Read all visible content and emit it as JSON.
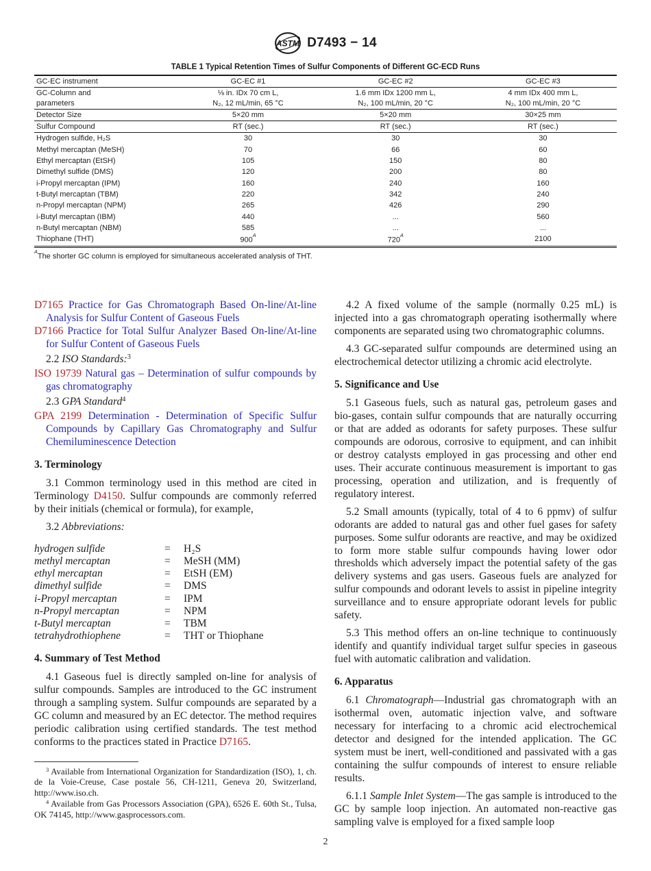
{
  "colors": {
    "link_red": "#b0262c",
    "link_blue": "#2828b4",
    "ink": "#1d1d1f"
  },
  "header": {
    "logo_text": "ASTM",
    "designation": "D7493 − 14"
  },
  "footer": {
    "page_number": "2"
  },
  "table1": {
    "title": "TABLE 1 Typical Retention Times of Sulfur Components of Different GC-ECD Runs",
    "rows": [
      {
        "rule": true,
        "cells": [
          "GC-EC instrument",
          "GC-EC #1",
          "GC-EC #2",
          "GC-EC #3"
        ]
      },
      {
        "rule": true,
        "cells": [
          "GC-Column and\nparameters",
          "⅛ in. IDx 70 cm L,\nN₂, 12 mL/min, 65 °C",
          "1.6 mm IDx 1200 mm L,\nN₂, 100 mL/min, 20 °C",
          "4 mm IDx 400 mm L,\nN₂, 100 mL/min, 20 °C"
        ]
      },
      {
        "rule": true,
        "cells": [
          "Detector Size",
          "5×20 mm",
          "5×20 mm",
          "30×25 mm"
        ]
      },
      {
        "rule": true,
        "cells": [
          "Sulfur Compound",
          "RT (sec.)",
          "RT (sec.)",
          "RT (sec.)"
        ]
      },
      {
        "cells": [
          "Hydrogen sulfide, H₂S",
          "30",
          "30",
          "30"
        ]
      },
      {
        "cells": [
          "Methyl mercaptan (MeSH)",
          "70",
          "66",
          "60"
        ]
      },
      {
        "cells": [
          "Ethyl mercaptan (EtSH)",
          "105",
          "150",
          "80"
        ]
      },
      {
        "cells": [
          "Dimethyl sulfide (DMS)",
          "120",
          "200",
          "80"
        ]
      },
      {
        "cells": [
          "i-Propyl mercaptan (IPM)",
          "160",
          "240",
          "160"
        ]
      },
      {
        "cells": [
          "t-Butyl mercaptan (TBM)",
          "220",
          "342",
          "240"
        ]
      },
      {
        "cells": [
          "n-Propyl mercaptan (NPM)",
          "265",
          "426",
          "290"
        ]
      },
      {
        "cells": [
          "i-Butyl mercaptan (IBM)",
          "440",
          "...",
          "560"
        ]
      },
      {
        "cells": [
          "n-Butyl mercaptan (NBM)",
          "585",
          "...",
          "..."
        ]
      },
      {
        "cells": [
          "Thiophane (THT)",
          "900^A",
          "720^A",
          "2100"
        ]
      }
    ],
    "footnote_marker": "A",
    "footnote": "The shorter GC column is employed for simultaneous accelerated analysis of THT."
  },
  "columns": {
    "left": {
      "blocks": [
        {
          "type": "ref",
          "runs": [
            {
              "t": "D7165 ",
              "s": "red"
            },
            {
              "t": "Practice for Gas Chromatograph Based On-line/At-line Analysis for Sulfur Content of Gaseous Fuels",
              "s": "blue"
            }
          ]
        },
        {
          "type": "ref",
          "runs": [
            {
              "t": "D7166 ",
              "s": "red"
            },
            {
              "t": "Practice for Total Sulfur Analyzer Based On-line/At-line for Sulfur Content of Gaseous Fuels",
              "s": "blue"
            }
          ]
        },
        {
          "type": "refh",
          "runs": [
            {
              "t": "2.2 "
            },
            {
              "t": "ISO Standards:",
              "s": "i"
            },
            {
              "t": "3",
              "s": "sup"
            }
          ]
        },
        {
          "type": "ref",
          "runs": [
            {
              "t": "ISO 19739 ",
              "s": "red"
            },
            {
              "t": "Natural gas – Determination of sulfur compounds by gas chromatography",
              "s": "blue"
            }
          ]
        },
        {
          "type": "refh",
          "runs": [
            {
              "t": "2.3 "
            },
            {
              "t": "GPA Standard",
              "s": "i"
            },
            {
              "t": "4",
              "s": "sup"
            }
          ]
        },
        {
          "type": "ref",
          "runs": [
            {
              "t": "GPA 2199 ",
              "s": "red"
            },
            {
              "t": "Determination - Determination of Specific Sulfur Compounds by Capillary Gas Chromatography and Sulfur Chemiluminescence Detection",
              "s": "blue"
            }
          ]
        },
        {
          "type": "h",
          "runs": [
            {
              "t": "3.  Terminology"
            }
          ]
        },
        {
          "type": "p",
          "runs": [
            {
              "t": "3.1 Common terminology used in this method are cited in Terminology "
            },
            {
              "t": "D4150",
              "s": "red"
            },
            {
              "t": ". Sulfur compounds are commonly referred by their initials (chemical or formula), for example,"
            }
          ]
        },
        {
          "type": "p",
          "runs": [
            {
              "t": "3.2 "
            },
            {
              "t": "Abbreviations:",
              "s": "i"
            }
          ]
        },
        {
          "type": "abbr",
          "eq": "=",
          "items": [
            {
              "term": "hydrogen sulfide",
              "value": "H₂S"
            },
            {
              "term": "methyl mercaptan",
              "value": "MeSH (MM)"
            },
            {
              "term": "ethyl mercaptan",
              "value": "EtSH (EM)"
            },
            {
              "term": "dimethyl sulfide",
              "value": "DMS"
            },
            {
              "term": "i-Propyl mercaptan",
              "value": "IPM"
            },
            {
              "term": "n-Propyl mercaptan",
              "value": "NPM"
            },
            {
              "term": "t-Butyl mercaptan",
              "value": "TBM"
            },
            {
              "term": "tetrahydrothiophene",
              "value": "THT or Thiophane"
            }
          ]
        },
        {
          "type": "h",
          "runs": [
            {
              "t": "4.  Summary of Test Method"
            }
          ]
        },
        {
          "type": "p",
          "runs": [
            {
              "t": "4.1 Gaseous fuel is directly sampled on-line for analysis of sulfur compounds. Samples are introduced to the GC instrument through a sampling system. Sulfur compounds are separated by a GC column and measured by an EC detector. The method requires periodic calibration using certified standards. The test method conforms to the practices stated in Practice "
            },
            {
              "t": "D7165",
              "s": "red"
            },
            {
              "t": "."
            }
          ]
        },
        {
          "type": "fnrule"
        },
        {
          "type": "fn",
          "runs": [
            {
              "t": "3",
              "s": "sup"
            },
            {
              "t": " Available from International Organization for Standardization (ISO), 1, ch. de la Voie-Creuse, Case postale 56, CH-1211, Geneva 20, Switzerland, http://www.iso.ch."
            }
          ]
        },
        {
          "type": "fn",
          "runs": [
            {
              "t": "4",
              "s": "sup"
            },
            {
              "t": " Available from Gas Processors Association (GPA), 6526 E. 60th St., Tulsa, OK 74145, http://www.gasprocessors.com."
            }
          ]
        }
      ]
    },
    "right": {
      "blocks": [
        {
          "type": "p",
          "runs": [
            {
              "t": "4.2 A fixed volume of the sample (normally 0.25 mL) is injected into a gas chromatograph operating isothermally where components are separated using two chromatographic columns."
            }
          ]
        },
        {
          "type": "p",
          "runs": [
            {
              "t": "4.3 GC-separated sulfur compounds are determined using an electrochemical detector utilizing a chromic acid electrolyte."
            }
          ]
        },
        {
          "type": "h",
          "runs": [
            {
              "t": "5.  Significance and Use"
            }
          ]
        },
        {
          "type": "p",
          "runs": [
            {
              "t": "5.1 Gaseous fuels, such as natural gas, petroleum gases and bio-gases, contain sulfur compounds that are naturally occurring or that are added as odorants for safety purposes. These sulfur compounds are odorous, corrosive to equipment, and can inhibit or destroy catalysts employed in gas processing and other end uses. Their accurate continuous measurement is important to gas processing, operation and utilization, and is frequently of regulatory interest."
            }
          ]
        },
        {
          "type": "p",
          "runs": [
            {
              "t": "5.2 Small amounts (typically, total of 4 to 6 ppmv) of sulfur odorants are added to natural gas and other fuel gases for safety purposes. Some sulfur odorants are reactive, and may be oxidized to form more stable sulfur compounds having lower odor thresholds which adversely impact the potential safety of the gas delivery systems and gas users. Gaseous fuels are analyzed for sulfur compounds and odorant levels to assist in pipeline integrity surveillance and to ensure appropriate odorant levels for public safety."
            }
          ]
        },
        {
          "type": "p",
          "runs": [
            {
              "t": "5.3 This method offers an on-line technique to continuously identify and quantify individual target sulfur species in gaseous fuel with automatic calibration and validation."
            }
          ]
        },
        {
          "type": "h",
          "runs": [
            {
              "t": "6.  Apparatus"
            }
          ]
        },
        {
          "type": "p",
          "runs": [
            {
              "t": "6.1 "
            },
            {
              "t": "Chromatograph",
              "s": "i"
            },
            {
              "t": "—Industrial gas chromatograph with an isothermal oven, automatic injection valve, and software necessary for interfacing to a chromic acid electrochemical detector and designed for the intended application. The GC system must be inert, well-conditioned and passivated with a gas containing the sulfur compounds of interest to ensure reliable results."
            }
          ]
        },
        {
          "type": "p",
          "runs": [
            {
              "t": "6.1.1 "
            },
            {
              "t": "Sample Inlet System",
              "s": "i"
            },
            {
              "t": "—The gas sample is introduced to the GC by sample loop injection. An automated non-reactive gas sampling valve is employed for a fixed sample loop"
            }
          ]
        }
      ]
    }
  }
}
